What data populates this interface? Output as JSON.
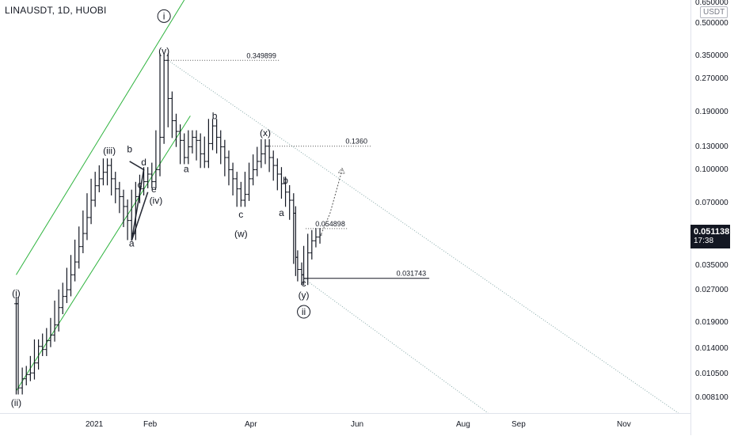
{
  "header": {
    "symbol": "LINAUSDT, 1D, HUOBI",
    "unit": "USDT"
  },
  "last_price": {
    "value": "0.051138",
    "countdown": "17:38"
  },
  "price_ticks": [
    "0.650000",
    "0.500000",
    "0.350000",
    "0.270000",
    "0.190000",
    "0.130000",
    "0.100000",
    "0.070000",
    "0.035000",
    "0.027000",
    "0.019000",
    "0.014000",
    "0.010500",
    "0.008100"
  ],
  "time_ticks": [
    "2021",
    "Feb",
    "Apr",
    "Jun",
    "Aug",
    "Sep",
    "Nov"
  ],
  "colors": {
    "channel": "#2db33d",
    "candle": "#131722",
    "dotted": "#555555",
    "label": "#131722"
  },
  "chart_data": {
    "type": "line",
    "subtype": "ohlc-bars",
    "title": "LINAUSDT, 1D, HUOBI",
    "y_scale": "log",
    "ylim": [
      0.0072,
      0.68
    ],
    "x_range": [
      "2020-12-24",
      "2021-11-30"
    ],
    "series": [
      {
        "values": [
          [
            "2021-01-01",
            0.024
          ],
          [
            "2021-01-02",
            0.0095
          ],
          [
            "2021-01-04",
            0.0105
          ],
          [
            "2021-01-06",
            0.011
          ],
          [
            "2021-01-08",
            0.0112
          ],
          [
            "2021-01-10",
            0.0125
          ],
          [
            "2021-01-12",
            0.015
          ],
          [
            "2021-01-14",
            0.0145
          ],
          [
            "2021-01-16",
            0.016
          ],
          [
            "2021-01-18",
            0.017
          ],
          [
            "2021-01-20",
            0.019
          ],
          [
            "2021-01-22",
            0.023
          ],
          [
            "2021-01-24",
            0.026
          ],
          [
            "2021-01-26",
            0.028
          ],
          [
            "2021-01-28",
            0.033
          ],
          [
            "2021-01-30",
            0.038
          ],
          [
            "2021-02-01",
            0.045
          ],
          [
            "2021-02-03",
            0.052
          ],
          [
            "2021-02-05",
            0.062
          ],
          [
            "2021-02-07",
            0.075
          ],
          [
            "2021-02-09",
            0.088
          ],
          [
            "2021-02-11",
            0.095
          ],
          [
            "2021-02-13",
            0.102
          ],
          [
            "2021-02-15",
            0.11
          ],
          [
            "2021-02-17",
            0.095
          ],
          [
            "2021-02-19",
            0.085
          ],
          [
            "2021-02-21",
            0.078
          ],
          [
            "2021-02-23",
            0.07
          ],
          [
            "2021-02-25",
            0.06
          ],
          [
            "2021-02-27",
            0.052
          ],
          [
            "2021-03-01",
            0.078
          ],
          [
            "2021-03-03",
            0.085
          ],
          [
            "2021-03-05",
            0.092
          ],
          [
            "2021-03-07",
            0.1
          ],
          [
            "2021-03-09",
            0.092
          ],
          [
            "2021-03-11",
            0.105
          ],
          [
            "2021-03-13",
            0.15
          ],
          [
            "2021-03-15",
            0.3498
          ],
          [
            "2021-03-17",
            0.23
          ],
          [
            "2021-03-19",
            0.18
          ],
          [
            "2021-03-21",
            0.16
          ],
          [
            "2021-03-23",
            0.145
          ],
          [
            "2021-03-25",
            0.12
          ],
          [
            "2021-03-27",
            0.135
          ],
          [
            "2021-03-29",
            0.15
          ],
          [
            "2021-03-31",
            0.145
          ],
          [
            "2021-04-02",
            0.125
          ],
          [
            "2021-04-04",
            0.115
          ],
          [
            "2021-04-06",
            0.14
          ],
          [
            "2021-04-08",
            0.17
          ],
          [
            "2021-04-10",
            0.15
          ],
          [
            "2021-04-12",
            0.135
          ],
          [
            "2021-04-14",
            0.12
          ],
          [
            "2021-04-16",
            0.105
          ],
          [
            "2021-04-18",
            0.095
          ],
          [
            "2021-04-20",
            0.085
          ],
          [
            "2021-04-22",
            0.075
          ],
          [
            "2021-04-24",
            0.08
          ],
          [
            "2021-04-26",
            0.095
          ],
          [
            "2021-04-28",
            0.105
          ],
          [
            "2021-04-30",
            0.115
          ],
          [
            "2021-05-02",
            0.125
          ],
          [
            "2021-05-04",
            0.136
          ],
          [
            "2021-05-06",
            0.12
          ],
          [
            "2021-05-08",
            0.11
          ],
          [
            "2021-05-10",
            0.1
          ],
          [
            "2021-05-12",
            0.09
          ],
          [
            "2021-05-14",
            0.082
          ],
          [
            "2021-05-16",
            0.075
          ],
          [
            "2021-05-18",
            0.065
          ],
          [
            "2021-05-19",
            0.04
          ],
          [
            "2021-05-20",
            0.035
          ],
          [
            "2021-05-22",
            0.033
          ],
          [
            "2021-05-23",
            0.0317
          ],
          [
            "2021-05-25",
            0.042
          ],
          [
            "2021-05-27",
            0.048
          ],
          [
            "2021-05-29",
            0.05
          ],
          [
            "2021-05-31",
            0.051138
          ]
        ]
      }
    ],
    "channel_upper": [
      [
        "2021-01-01",
        0.033
      ],
      [
        "2021-03-25",
        0.68
      ]
    ],
    "channel_lower": [
      [
        "2021-01-01",
        0.0092
      ],
      [
        "2021-03-28",
        0.19
      ]
    ],
    "down_channel_upper": [
      [
        "2021-03-17",
        0.35
      ],
      [
        "2021-11-24",
        0.0072
      ]
    ],
    "down_channel_lower": [
      [
        "2021-05-23",
        0.0317
      ],
      [
        "2021-08-22",
        0.0072
      ]
    ],
    "triangle": [
      [
        "2021-02-26",
        0.115
      ],
      [
        "2021-03-05",
        0.105
      ],
      [
        "2021-02-27",
        0.048
      ],
      [
        "2021-03-07",
        0.082
      ]
    ],
    "projection": [
      [
        "2021-05-31",
        0.05
      ],
      [
        "2021-06-05",
        0.065
      ],
      [
        "2021-06-11",
        0.105
      ]
    ],
    "levels": [
      {
        "label": "0.349899",
        "value": 0.349899,
        "x0": "2021-03-15",
        "x1": "2021-05-11",
        "style": "dotted"
      },
      {
        "label": "0.1360",
        "value": 0.136,
        "x0": "2021-05-04",
        "x1": "2021-06-25",
        "style": "dotted"
      },
      {
        "label": "0.054898",
        "value": 0.054898,
        "x0": "2021-05-24",
        "x1": "2021-06-14",
        "style": "dotted"
      },
      {
        "label": "0.031743",
        "value": 0.031743,
        "x0": "2021-05-23",
        "x1": "2021-07-24",
        "style": "solid"
      }
    ],
    "wave_labels": [
      {
        "text": "i",
        "date": "2021-03-15",
        "value": 0.55,
        "circled": true
      },
      {
        "text": "(v)",
        "date": "2021-03-15",
        "value": 0.375,
        "circled": false
      },
      {
        "text": "(iii)",
        "date": "2021-02-16",
        "value": 0.125,
        "circled": false
      },
      {
        "text": "b",
        "date": "2021-02-26",
        "value": 0.127,
        "circled": false
      },
      {
        "text": "d",
        "date": "2021-03-05",
        "value": 0.11,
        "circled": false
      },
      {
        "text": "c",
        "date": "2021-03-03",
        "value": 0.086,
        "circled": false
      },
      {
        "text": "e",
        "date": "2021-03-10",
        "value": 0.082,
        "circled": false
      },
      {
        "text": "(iv)",
        "date": "2021-03-11",
        "value": 0.072,
        "circled": false
      },
      {
        "text": "a",
        "date": "2021-02-27",
        "value": 0.045,
        "circled": false
      },
      {
        "text": "a",
        "date": "2021-03-26",
        "value": 0.102,
        "circled": false
      },
      {
        "text": "b",
        "date": "2021-04-09",
        "value": 0.183,
        "circled": false
      },
      {
        "text": "(x)",
        "date": "2021-05-04",
        "value": 0.152,
        "circled": false
      },
      {
        "text": "c",
        "date": "2021-04-22",
        "value": 0.062,
        "circled": false
      },
      {
        "text": "(w)",
        "date": "2021-04-22",
        "value": 0.05,
        "circled": false
      },
      {
        "text": "b",
        "date": "2021-05-14",
        "value": 0.09,
        "circled": false
      },
      {
        "text": "a",
        "date": "2021-05-12",
        "value": 0.063,
        "circled": false
      },
      {
        "text": "c",
        "date": "2021-05-23",
        "value": 0.029,
        "circled": false
      },
      {
        "text": "(y)",
        "date": "2021-05-23",
        "value": 0.0255,
        "circled": false
      },
      {
        "text": "ii",
        "date": "2021-05-23",
        "value": 0.0212,
        "circled": true
      },
      {
        "text": "(i)",
        "date": "2021-01-01",
        "value": 0.026,
        "circled": false
      },
      {
        "text": "(ii)",
        "date": "2021-01-01",
        "value": 0.0078,
        "circled": false
      }
    ]
  }
}
